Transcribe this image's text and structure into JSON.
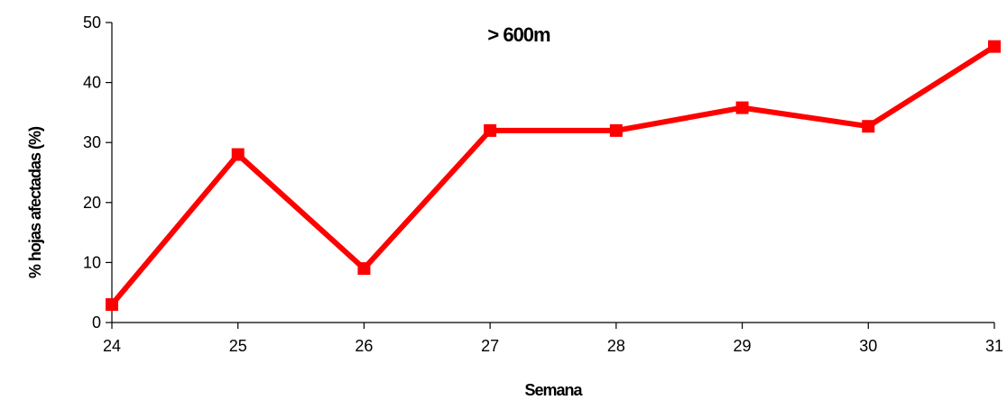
{
  "chart_data": {
    "type": "line",
    "title": "> 600m",
    "xlabel": "Semana",
    "ylabel": "% hojas afectadas (%)",
    "x": [
      24,
      25,
      26,
      27,
      28,
      29,
      30,
      31
    ],
    "series": [
      {
        "values": [
          3,
          28,
          9,
          32,
          32,
          35.8,
          32.7,
          46
        ]
      }
    ],
    "ylim": [
      0,
      50
    ],
    "xlim": [
      24,
      31
    ],
    "yticks": [
      0,
      10,
      20,
      30,
      40,
      50
    ],
    "xticks": [
      24,
      25,
      26,
      27,
      28,
      29,
      30,
      31
    ],
    "grid": false,
    "line_color": "#ff0000",
    "marker": "square"
  }
}
